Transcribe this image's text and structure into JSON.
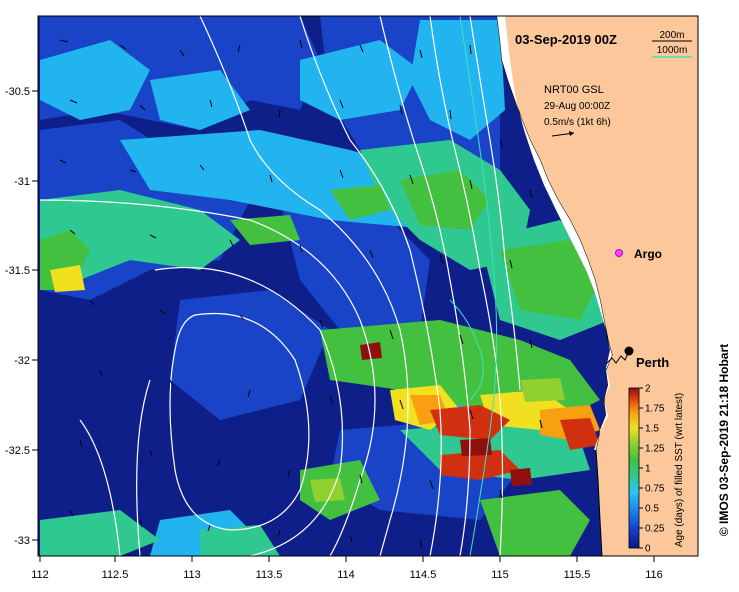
{
  "title": "03-Sep-2019 00Z",
  "contour_legend": {
    "items": [
      {
        "label": "200m",
        "color": "#000000"
      },
      {
        "label": "1000m",
        "color": "#40e0c0"
      }
    ]
  },
  "current_legend": {
    "source": "NRT00 GSL",
    "date": "29-Aug 00:00Z",
    "scale": "0.5m/s (1kt 6h)"
  },
  "places": [
    {
      "name": "Argo",
      "lon": 115.8,
      "lat": -31.45,
      "marker": "magenta-dot"
    },
    {
      "name": "Perth",
      "lon": 115.86,
      "lat": -31.95,
      "marker": "black-dot"
    }
  ],
  "axes": {
    "x_ticks": [
      "112",
      "112.5",
      "113",
      "113.5",
      "114",
      "114.5",
      "115",
      "115.5",
      "116"
    ],
    "y_ticks": [
      "-30.5",
      "-31",
      "-31.5",
      "-32",
      "-32.5",
      "-33"
    ]
  },
  "colorbar": {
    "label": "Age (days) of filled SST (wrt latest)",
    "ticks": [
      "2",
      "1.75",
      "1.5",
      "1.25",
      "1",
      "0.75",
      "0.5",
      "0.25",
      "0"
    ],
    "colors": [
      "#0a1a8c",
      "#1440d0",
      "#1e8cf0",
      "#28c8f0",
      "#30c890",
      "#40c040",
      "#90d030",
      "#f0e020",
      "#f8a010",
      "#e04010",
      "#901010"
    ]
  },
  "credit": "© IMOS 03-Sep-2019 21:18 Hobart",
  "colors": {
    "land": "#fcc79a",
    "ocean_deep": "#0f1f8a",
    "ocean_blue": "#1a44c8"
  }
}
